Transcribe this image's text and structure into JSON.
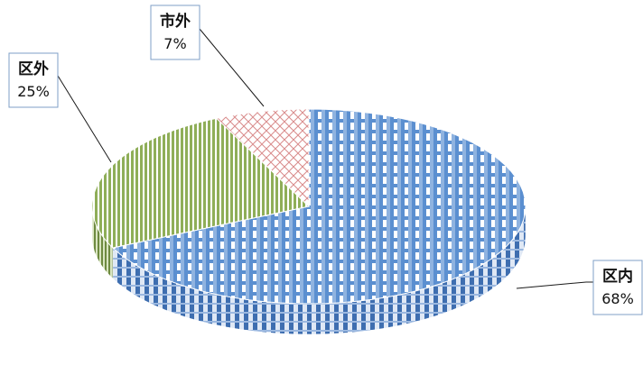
{
  "chart_data": {
    "type": "pie",
    "style": "3d",
    "slices": [
      {
        "label": "区内",
        "value": 68,
        "value_label": "68%",
        "color": "#5b8fd0",
        "pattern": "checkered"
      },
      {
        "label": "区外",
        "value": 25,
        "value_label": "25%",
        "color": "#8fae58",
        "pattern": "vertical-stripes"
      },
      {
        "label": "市外",
        "value": 7,
        "value_label": "7%",
        "color": "#e6b0b0",
        "pattern": "diagonal-cross"
      }
    ],
    "title": "",
    "legend": "none"
  }
}
